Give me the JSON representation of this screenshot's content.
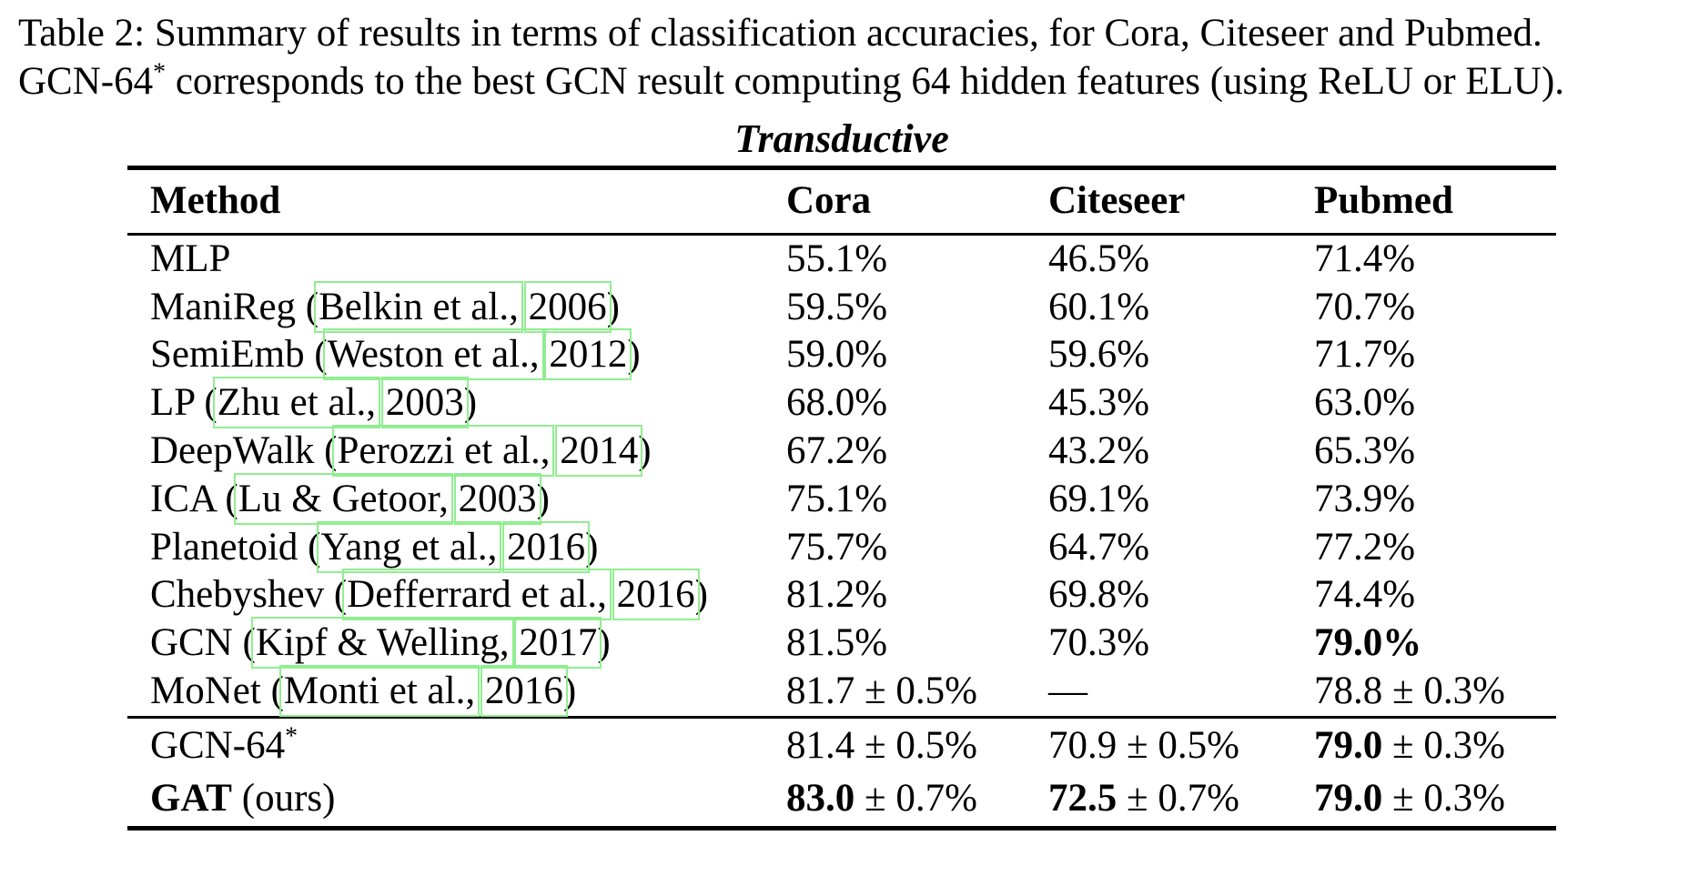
{
  "caption": {
    "line1": "Table 2: Summary of results in terms of classification accuracies, for Cora, Citeseer and Pubmed.",
    "line2_parts": [
      {
        "t": "text",
        "v": "GCN-64"
      },
      {
        "t": "sup",
        "v": "*"
      },
      {
        "t": "text",
        "v": " corresponds to the best GCN result computing 64 hidden features (using ReLU or ELU)."
      }
    ]
  },
  "table": {
    "section_title": "Transductive",
    "headers": [
      "Method",
      "Cora",
      "Citeseer",
      "Pubmed"
    ],
    "link_box_color": "#90ee90",
    "rows": [
      {
        "method": [
          {
            "t": "text",
            "v": "MLP"
          }
        ],
        "cora": [
          {
            "t": "text",
            "v": "55.1%"
          }
        ],
        "citeseer": [
          {
            "t": "text",
            "v": "46.5%"
          }
        ],
        "pubmed": [
          {
            "t": "text",
            "v": "71.4%"
          }
        ]
      },
      {
        "method": [
          {
            "t": "text",
            "v": "ManiReg ("
          },
          {
            "t": "link",
            "v": "Belkin et al.,"
          },
          {
            "t": "text",
            "v": " "
          },
          {
            "t": "link",
            "v": "2006"
          },
          {
            "t": "text",
            "v": ")"
          }
        ],
        "cora": [
          {
            "t": "text",
            "v": "59.5%"
          }
        ],
        "citeseer": [
          {
            "t": "text",
            "v": "60.1%"
          }
        ],
        "pubmed": [
          {
            "t": "text",
            "v": "70.7%"
          }
        ]
      },
      {
        "method": [
          {
            "t": "text",
            "v": "SemiEmb ("
          },
          {
            "t": "link",
            "v": "Weston et al.,"
          },
          {
            "t": "text",
            "v": " "
          },
          {
            "t": "link",
            "v": "2012"
          },
          {
            "t": "text",
            "v": ")"
          }
        ],
        "cora": [
          {
            "t": "text",
            "v": "59.0%"
          }
        ],
        "citeseer": [
          {
            "t": "text",
            "v": "59.6%"
          }
        ],
        "pubmed": [
          {
            "t": "text",
            "v": "71.7%"
          }
        ]
      },
      {
        "method": [
          {
            "t": "text",
            "v": "LP ("
          },
          {
            "t": "link",
            "v": "Zhu et al.,"
          },
          {
            "t": "text",
            "v": " "
          },
          {
            "t": "link",
            "v": "2003"
          },
          {
            "t": "text",
            "v": ")"
          }
        ],
        "cora": [
          {
            "t": "text",
            "v": "68.0%"
          }
        ],
        "citeseer": [
          {
            "t": "text",
            "v": "45.3%"
          }
        ],
        "pubmed": [
          {
            "t": "text",
            "v": "63.0%"
          }
        ]
      },
      {
        "method": [
          {
            "t": "text",
            "v": "DeepWalk ("
          },
          {
            "t": "link",
            "v": "Perozzi et al.,"
          },
          {
            "t": "text",
            "v": " "
          },
          {
            "t": "link",
            "v": "2014"
          },
          {
            "t": "text",
            "v": ")"
          }
        ],
        "cora": [
          {
            "t": "text",
            "v": "67.2%"
          }
        ],
        "citeseer": [
          {
            "t": "text",
            "v": "43.2%"
          }
        ],
        "pubmed": [
          {
            "t": "text",
            "v": "65.3%"
          }
        ]
      },
      {
        "method": [
          {
            "t": "text",
            "v": "ICA ("
          },
          {
            "t": "link",
            "v": "Lu & Getoor,"
          },
          {
            "t": "text",
            "v": " "
          },
          {
            "t": "link",
            "v": "2003"
          },
          {
            "t": "text",
            "v": ")"
          }
        ],
        "cora": [
          {
            "t": "text",
            "v": "75.1%"
          }
        ],
        "citeseer": [
          {
            "t": "text",
            "v": "69.1%"
          }
        ],
        "pubmed": [
          {
            "t": "text",
            "v": "73.9%"
          }
        ]
      },
      {
        "method": [
          {
            "t": "text",
            "v": "Planetoid ("
          },
          {
            "t": "link",
            "v": "Yang et al.,"
          },
          {
            "t": "text",
            "v": " "
          },
          {
            "t": "link",
            "v": "2016"
          },
          {
            "t": "text",
            "v": ")"
          }
        ],
        "cora": [
          {
            "t": "text",
            "v": "75.7%"
          }
        ],
        "citeseer": [
          {
            "t": "text",
            "v": "64.7%"
          }
        ],
        "pubmed": [
          {
            "t": "text",
            "v": "77.2%"
          }
        ]
      },
      {
        "method": [
          {
            "t": "text",
            "v": "Chebyshev ("
          },
          {
            "t": "link",
            "v": "Defferrard et al.,"
          },
          {
            "t": "text",
            "v": " "
          },
          {
            "t": "link",
            "v": "2016"
          },
          {
            "t": "text",
            "v": ")"
          }
        ],
        "cora": [
          {
            "t": "text",
            "v": "81.2%"
          }
        ],
        "citeseer": [
          {
            "t": "text",
            "v": "69.8%"
          }
        ],
        "pubmed": [
          {
            "t": "text",
            "v": "74.4%"
          }
        ]
      },
      {
        "method": [
          {
            "t": "text",
            "v": "GCN ("
          },
          {
            "t": "link",
            "v": "Kipf & Welling,"
          },
          {
            "t": "text",
            "v": " "
          },
          {
            "t": "link",
            "v": "2017"
          },
          {
            "t": "text",
            "v": ")"
          }
        ],
        "cora": [
          {
            "t": "text",
            "v": "81.5%"
          }
        ],
        "citeseer": [
          {
            "t": "text",
            "v": "70.3%"
          }
        ],
        "pubmed": [
          {
            "t": "bold",
            "v": "79.0%"
          }
        ]
      },
      {
        "method": [
          {
            "t": "text",
            "v": "MoNet ("
          },
          {
            "t": "link",
            "v": "Monti et al.,"
          },
          {
            "t": "text",
            "v": " "
          },
          {
            "t": "link",
            "v": "2016"
          },
          {
            "t": "text",
            "v": ")"
          }
        ],
        "cora": [
          {
            "t": "text",
            "v": "81.7 ± 0.5%"
          }
        ],
        "citeseer": [
          {
            "t": "text",
            "v": "—"
          }
        ],
        "pubmed": [
          {
            "t": "text",
            "v": "78.8 ± 0.3%"
          }
        ]
      }
    ],
    "footer_rows": [
      {
        "method": [
          {
            "t": "text",
            "v": "GCN-64"
          },
          {
            "t": "sup",
            "v": "*"
          }
        ],
        "cora": [
          {
            "t": "text",
            "v": "81.4 ± 0.5%"
          }
        ],
        "citeseer": [
          {
            "t": "text",
            "v": "70.9 ± 0.5%"
          }
        ],
        "pubmed": [
          {
            "t": "bold",
            "v": "79.0"
          },
          {
            "t": "text",
            "v": " ± 0.3%"
          }
        ]
      },
      {
        "method": [
          {
            "t": "bold",
            "v": "GAT"
          },
          {
            "t": "text",
            "v": " (ours)"
          }
        ],
        "cora": [
          {
            "t": "bold",
            "v": "83.0"
          },
          {
            "t": "text",
            "v": " ± 0.7%"
          }
        ],
        "citeseer": [
          {
            "t": "bold",
            "v": "72.5"
          },
          {
            "t": "text",
            "v": " ± 0.7%"
          }
        ],
        "pubmed": [
          {
            "t": "bold",
            "v": "79.0"
          },
          {
            "t": "text",
            "v": " ± 0.3%"
          }
        ]
      }
    ]
  }
}
